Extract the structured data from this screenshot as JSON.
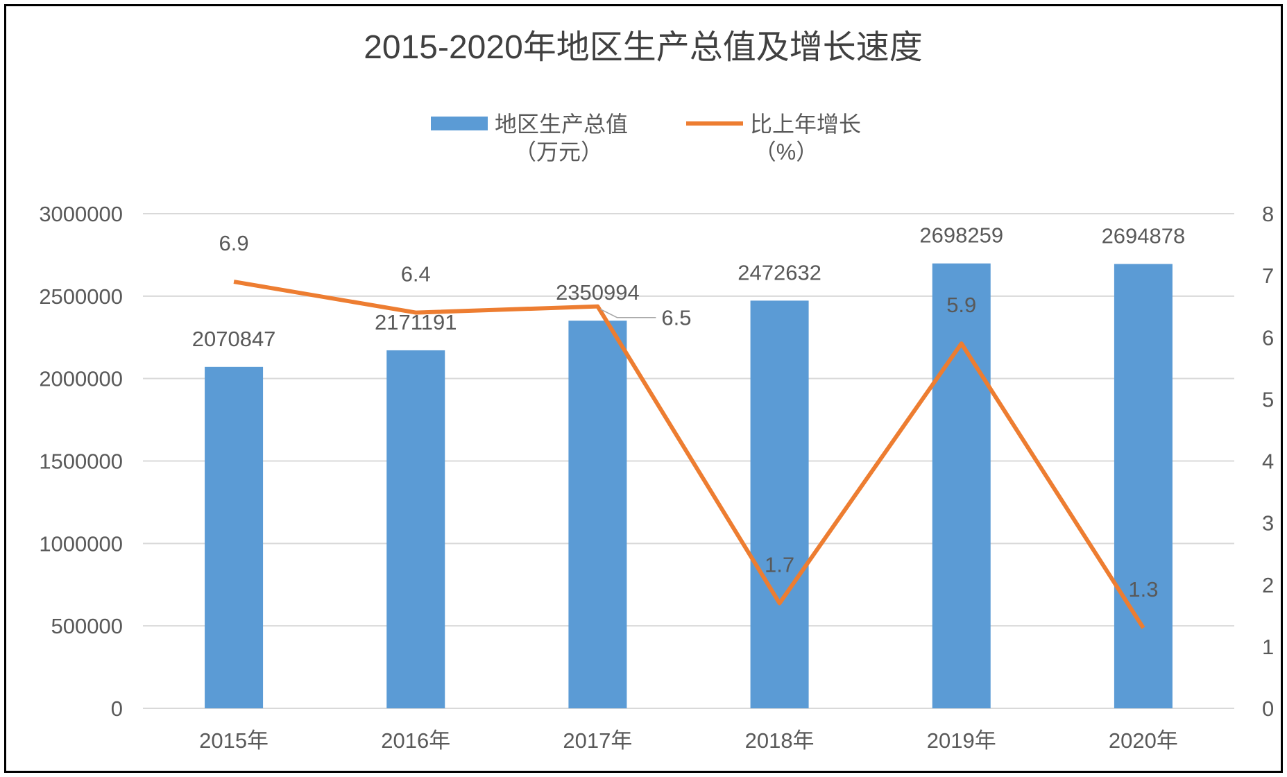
{
  "chart_data": {
    "type": "bar",
    "title": "2015-2020年地区生产总值及增长速度",
    "categories": [
      "2015年",
      "2016年",
      "2017年",
      "2018年",
      "2019年",
      "2020年"
    ],
    "series": [
      {
        "name": "地区生产总值（万元）",
        "name_lines": [
          "地区生产总值",
          "（万元）"
        ],
        "type": "bar",
        "axis": "left",
        "color": "#5B9BD5",
        "values": [
          2070847,
          2171191,
          2350994,
          2472632,
          2698259,
          2694878
        ]
      },
      {
        "name": "比上年增长（%）",
        "name_lines": [
          "比上年增长",
          "（%）"
        ],
        "type": "line",
        "axis": "right",
        "color": "#ED7D31",
        "values": [
          6.9,
          6.4,
          6.5,
          1.7,
          5.9,
          1.3
        ]
      }
    ],
    "y_left": {
      "min": 0,
      "max": 3000000,
      "ticks": [
        "0",
        "500000",
        "1000000",
        "1500000",
        "2000000",
        "2500000",
        "3000000"
      ]
    },
    "y_right": {
      "min": 0,
      "max": 8,
      "ticks": [
        "0",
        "1",
        "2",
        "3",
        "4",
        "5",
        "6",
        "7",
        "8"
      ]
    },
    "grid": true,
    "legend": "top-center",
    "colors": {
      "grid": "#D9D9D9",
      "text": "#595959",
      "title": "#404040"
    }
  }
}
